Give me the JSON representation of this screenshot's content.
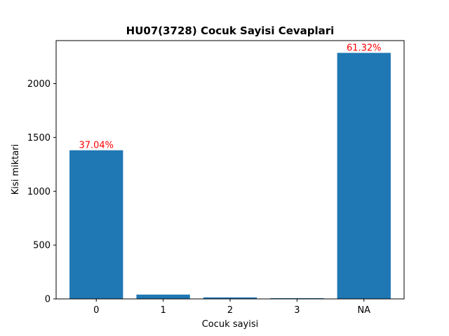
{
  "chart_data": {
    "type": "bar",
    "title": "HU07(3728) Cocuk Sayisi Cevaplari",
    "xlabel": "Cocuk sayisi",
    "ylabel": "Kisi miktari",
    "categories": [
      "0",
      "1",
      "2",
      "3",
      "NA"
    ],
    "values": [
      1381,
      40,
      14,
      7,
      2286
    ],
    "data_labels": [
      "37.04%",
      "",
      "",
      "",
      "61.32%"
    ],
    "ylim": [
      0,
      2400
    ],
    "yticks": [
      0,
      500,
      1000,
      1500,
      2000
    ],
    "grid": false,
    "bar_color": "#1f77b4",
    "label_color": "#ff0000"
  }
}
